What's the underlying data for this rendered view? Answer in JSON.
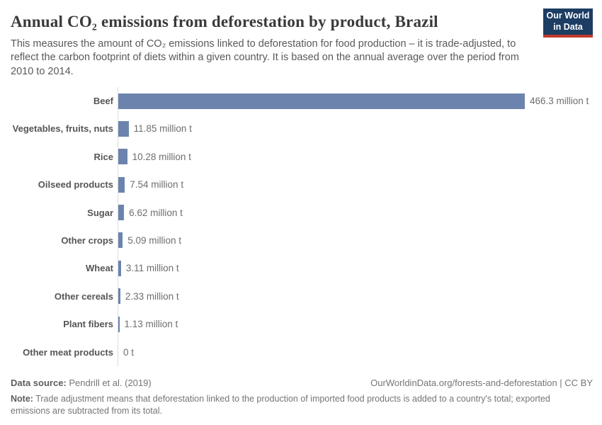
{
  "header": {
    "title": "Annual CO₂ emissions from deforestation by product, Brazil",
    "subtitle": "This measures the amount of CO₂ emissions linked to deforestation for food production – it is trade-adjusted, to reflect the carbon footprint of diets within a given country. It is based on the annual average over the period from 2010 to 2014.",
    "logo": {
      "line1": "Our World",
      "line2": "in Data"
    }
  },
  "chart_data": {
    "type": "bar",
    "orientation": "horizontal",
    "title": "Annual CO₂ emissions from deforestation by product, Brazil",
    "unit": "million t",
    "categories": [
      "Beef",
      "Vegetables, fruits, nuts",
      "Rice",
      "Oilseed products",
      "Sugar",
      "Other crops",
      "Wheat",
      "Other cereals",
      "Plant fibers",
      "Other meat products"
    ],
    "values": [
      466.3,
      11.85,
      10.28,
      7.54,
      6.62,
      5.09,
      3.11,
      2.33,
      1.13,
      0
    ],
    "value_labels": [
      "466.3 million t",
      "11.85 million t",
      "10.28 million t",
      "7.54 million t",
      "6.62 million t",
      "5.09 million t",
      "3.11 million t",
      "2.33 million t",
      "1.13 million t",
      "0 t"
    ],
    "xlim": [
      0,
      466.3
    ],
    "grid": false,
    "legend": "none",
    "bar_color": "#6c84ad",
    "axis_color": "#dcdcdc"
  },
  "colors": {
    "bar": "#6c84ad",
    "logo_bg": "#1d3d63",
    "logo_accent": "#c0392b",
    "title_text": "#3a3a3a",
    "subtitle_text": "#595959",
    "label_text": "#555555",
    "value_text": "#6e6e6e",
    "footer_text": "#757575"
  },
  "footer": {
    "source_label": "Data source:",
    "source_value": " Pendrill et al. (2019)",
    "credit": "OurWorldinData.org/forests-and-deforestation | CC BY",
    "note_label": "Note:",
    "note_value": " Trade adjustment means that deforestation linked to the production of imported food products is added to a country's total; exported emissions are subtracted from its total."
  }
}
